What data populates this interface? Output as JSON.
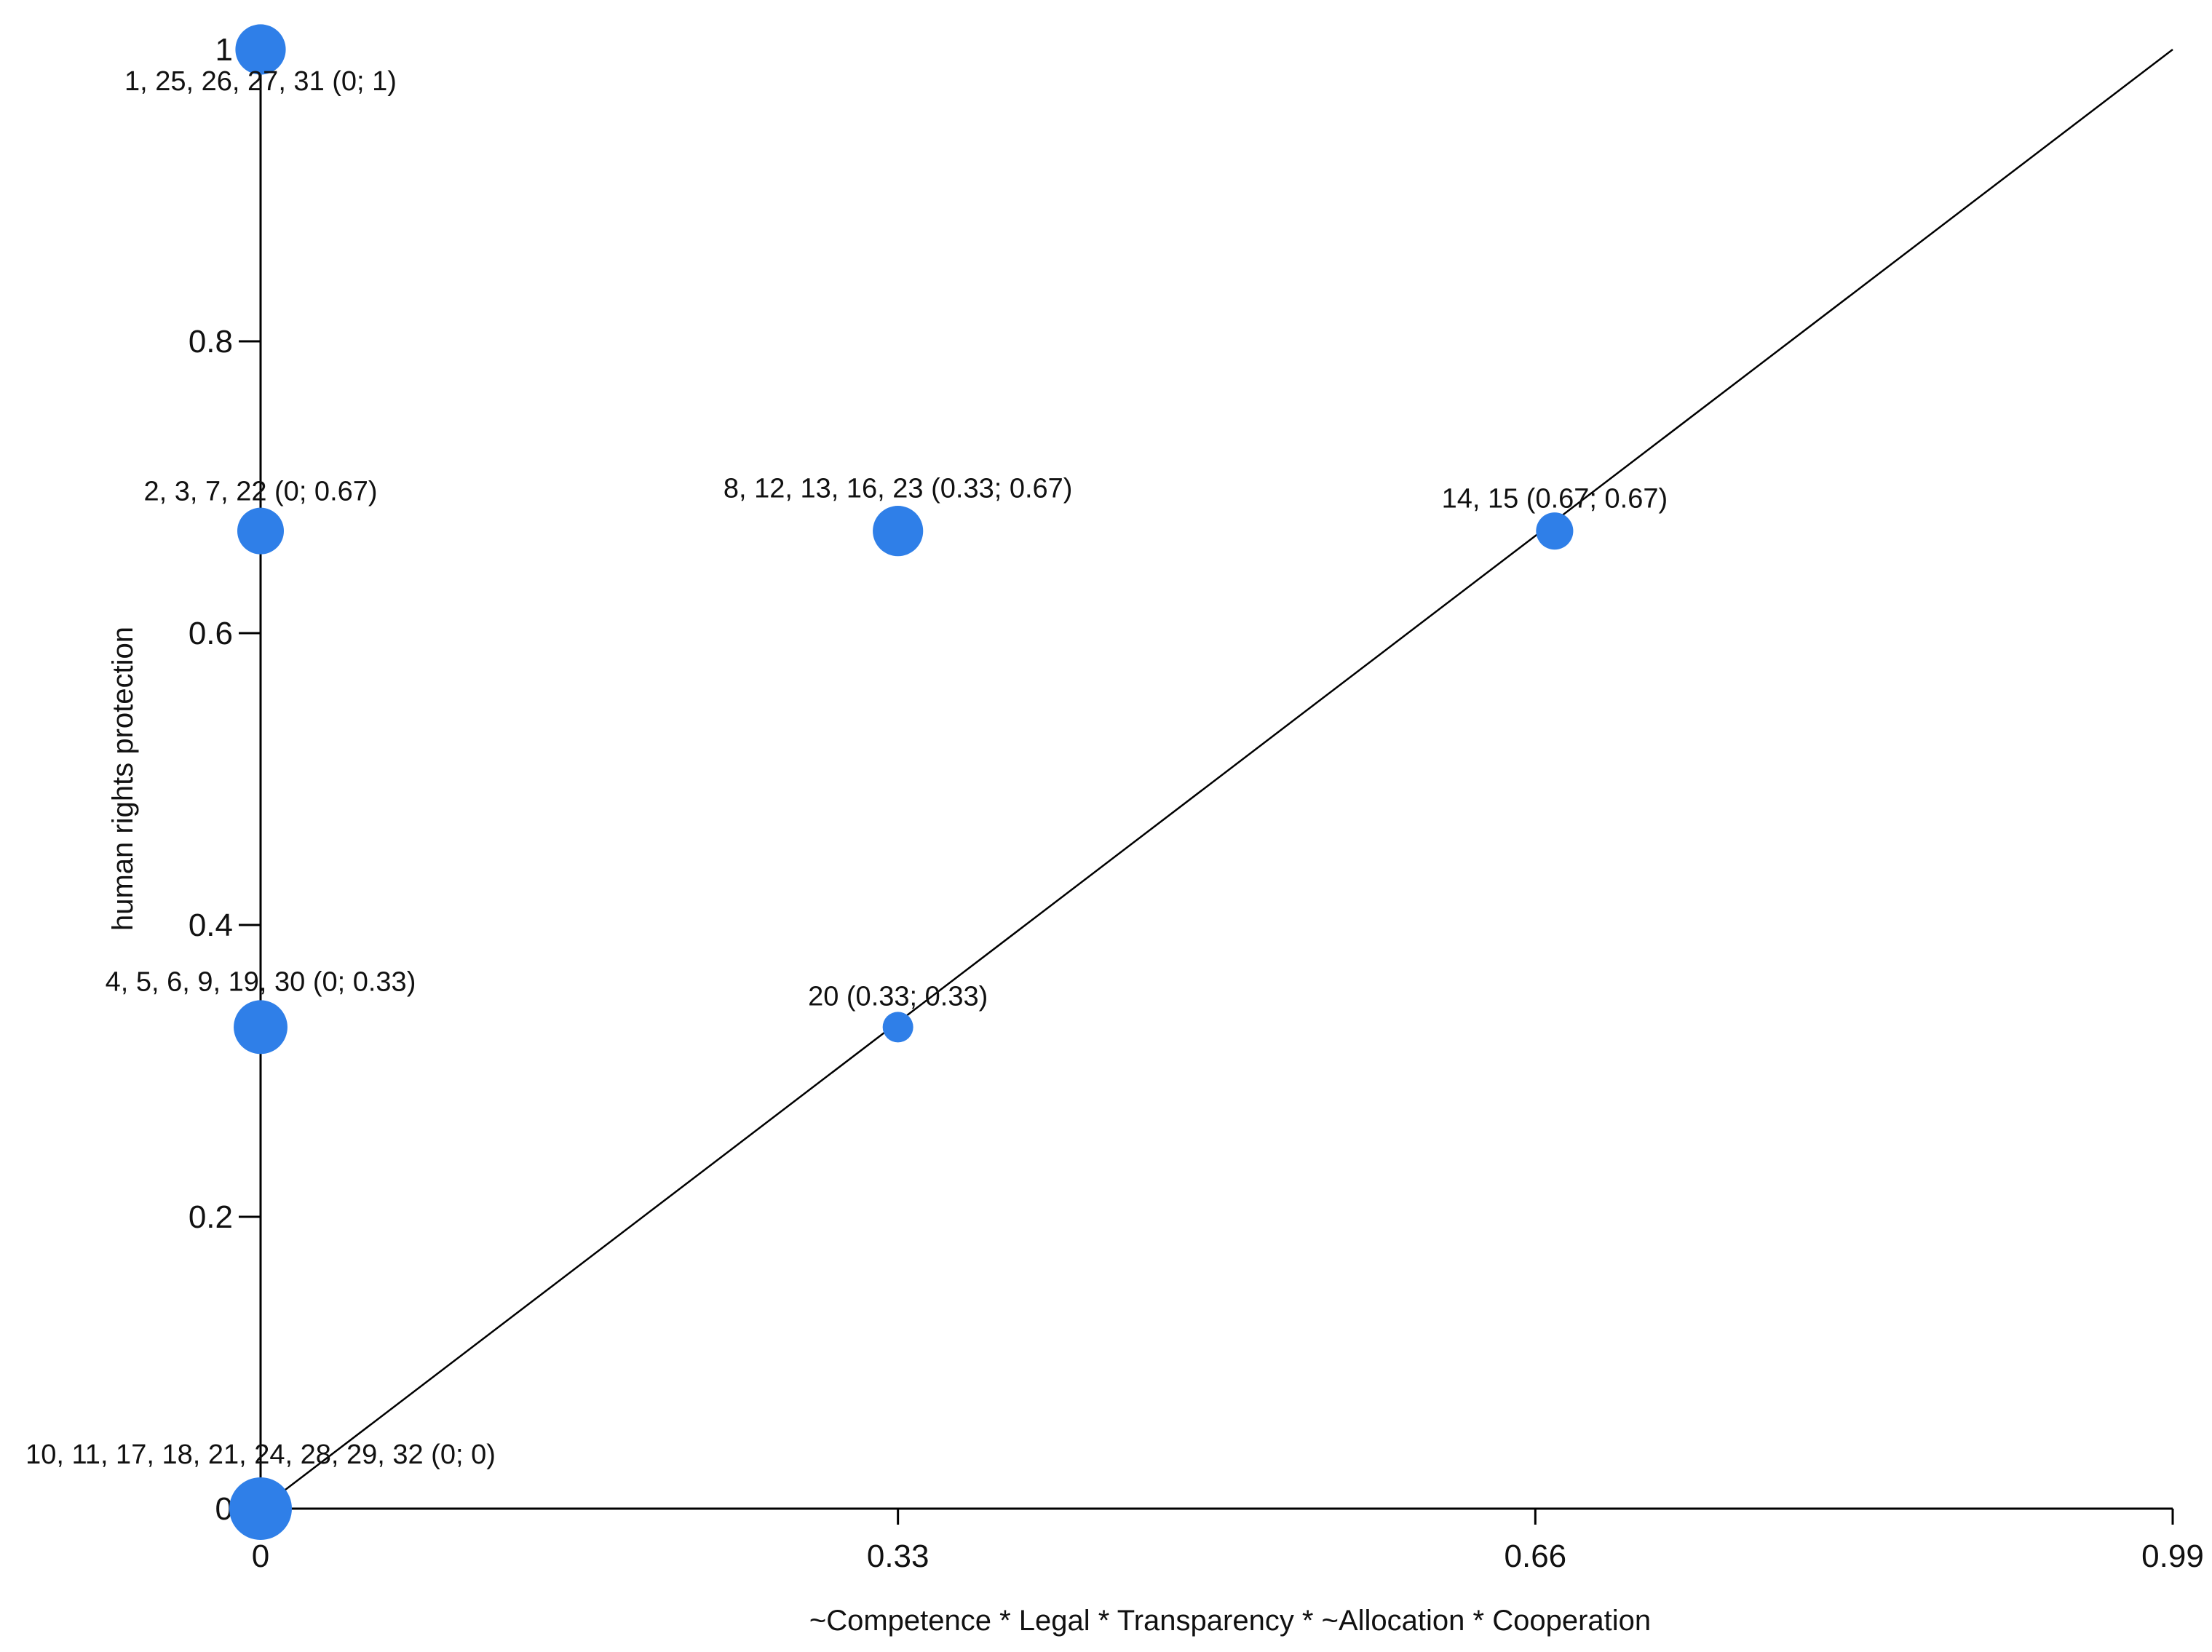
{
  "chart_data": {
    "type": "scatter",
    "title": "",
    "xlabel": "~Competence * Legal * Transparency * ~Allocation * Cooperation",
    "ylabel": "human rights protection",
    "xlim": [
      0,
      0.99
    ],
    "ylim": [
      0,
      1
    ],
    "x_ticks": [
      "0",
      "0.33",
      "0.66",
      "0.99"
    ],
    "y_ticks": [
      "0",
      "0.2",
      "0.4",
      "0.6",
      "0.8",
      "1"
    ],
    "grid": false,
    "diagonal_line": true,
    "point_color": "#2f7fe8",
    "points": [
      {
        "x": 0,
        "y": 1,
        "count": 5,
        "label": "1, 25, 26, 27, 31 (0; 1)"
      },
      {
        "x": 0,
        "y": 0.67,
        "count": 4,
        "label": "2, 3, 7, 22 (0; 0.67)"
      },
      {
        "x": 0.33,
        "y": 0.67,
        "count": 5,
        "label": "8, 12, 13, 16, 23 (0.33; 0.67)"
      },
      {
        "x": 0.67,
        "y": 0.67,
        "count": 2,
        "label": "14, 15 (0.67; 0.67)"
      },
      {
        "x": 0,
        "y": 0.33,
        "count": 6,
        "label": "4, 5, 6, 9, 19, 30 (0; 0.33)"
      },
      {
        "x": 0.33,
        "y": 0.33,
        "count": 1,
        "label": "20 (0.33; 0.33)"
      },
      {
        "x": 0,
        "y": 0,
        "count": 9,
        "label": "10, 11, 17, 18, 21, 24, 28, 29, 32 (0; 0)"
      }
    ]
  }
}
